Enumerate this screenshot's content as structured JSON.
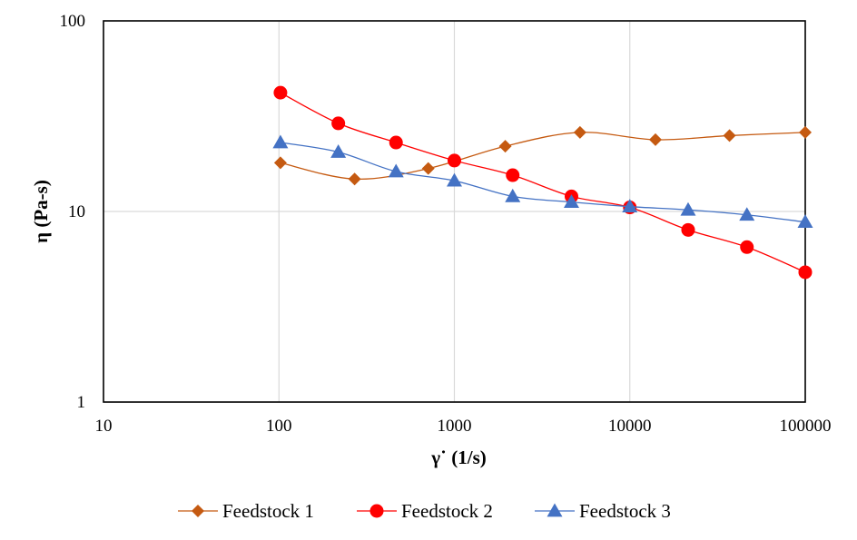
{
  "chart_data": {
    "type": "line",
    "xscale": "log",
    "yscale": "log",
    "xlim": [
      10,
      100000
    ],
    "ylim": [
      1,
      100
    ],
    "grid": true,
    "legend_position": "bottom",
    "xlabel": "γ˙ (1/s)",
    "ylabel": "η (Pa-s)",
    "x_ticks": [
      10,
      100,
      1000,
      10000,
      100000
    ],
    "x_tick_labels": [
      "10",
      "100",
      "1000",
      "10000",
      "100000"
    ],
    "y_ticks": [
      1,
      10,
      100
    ],
    "y_tick_labels": [
      "1",
      "10",
      "100"
    ],
    "series": [
      {
        "name": "Feedstock 1",
        "color": "#c55a11",
        "marker": "diamond",
        "points": [
          [
            102,
            18.0
          ],
          [
            270,
            14.8
          ],
          [
            710,
            16.8
          ],
          [
            1950,
            22.0
          ],
          [
            5200,
            26.0
          ],
          [
            14000,
            23.8
          ],
          [
            37000,
            25.0
          ],
          [
            100000,
            26.0
          ]
        ]
      },
      {
        "name": "Feedstock 2",
        "color": "#ff0000",
        "marker": "circle",
        "points": [
          [
            102,
            42.0
          ],
          [
            218,
            29.0
          ],
          [
            465,
            23.0
          ],
          [
            1000,
            18.5
          ],
          [
            2150,
            15.5
          ],
          [
            4650,
            12.0
          ],
          [
            10000,
            10.5
          ],
          [
            21500,
            8.0
          ],
          [
            46500,
            6.5
          ],
          [
            100000,
            4.8
          ]
        ]
      },
      {
        "name": "Feedstock 3",
        "color": "#4472c4",
        "marker": "triangle",
        "points": [
          [
            102,
            23.0
          ],
          [
            218,
            20.5
          ],
          [
            465,
            16.2
          ],
          [
            1000,
            14.5
          ],
          [
            2150,
            12.0
          ],
          [
            4650,
            11.2
          ],
          [
            10000,
            10.6
          ],
          [
            21500,
            10.2
          ],
          [
            46500,
            9.6
          ],
          [
            100000,
            8.8
          ]
        ]
      }
    ]
  }
}
